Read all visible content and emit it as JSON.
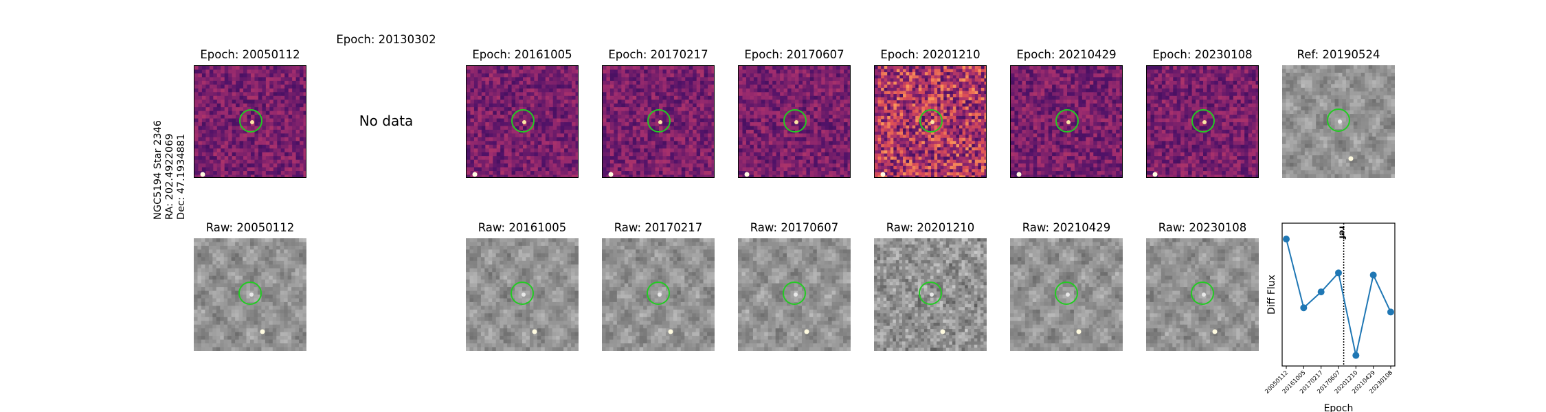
{
  "star_label": {
    "name": "NGC5194 Star 2346",
    "ra": "RA: 202.4922069",
    "dec": "Dec: 47.1934881"
  },
  "top_row": [
    {
      "title": "Epoch: 20050112",
      "has_data": true,
      "seed": 11
    },
    {
      "title": "Epoch: 20130302",
      "has_data": false,
      "note": "No data"
    },
    {
      "title": "Epoch: 20161005",
      "has_data": true,
      "seed": 23
    },
    {
      "title": "Epoch: 20170217",
      "has_data": true,
      "seed": 37
    },
    {
      "title": "Epoch: 20170607",
      "has_data": true,
      "seed": 41
    },
    {
      "title": "Epoch: 20201210",
      "has_data": true,
      "seed": 53
    },
    {
      "title": "Epoch: 20210429",
      "has_data": true,
      "seed": 67
    },
    {
      "title": "Epoch: 20230108",
      "has_data": true,
      "seed": 71
    }
  ],
  "ref_panel": {
    "title": "Ref: 20190524"
  },
  "bottom_row": [
    {
      "title": "Raw: 20050112"
    },
    {
      "title": "Raw: 20161005"
    },
    {
      "title": "Raw: 20170217"
    },
    {
      "title": "Raw: 20170607"
    },
    {
      "title": "Raw: 20201210"
    },
    {
      "title": "Raw: 20210429"
    },
    {
      "title": "Raw: 20230108"
    }
  ],
  "colors": {
    "circle": "#22cc22",
    "line": "#1f77b4"
  },
  "chart_data": {
    "type": "line",
    "xlabel": "Epoch",
    "ylabel": "Diff Flux",
    "categories": [
      "20050112",
      "20161005",
      "20170217",
      "20170607",
      "20201210",
      "20210429",
      "20230108"
    ],
    "values": [
      0.95,
      0.3,
      0.45,
      0.63,
      -0.15,
      0.61,
      0.26
    ],
    "ylim": [
      -0.25,
      1.1
    ],
    "ref_line": {
      "label": "ref",
      "position_between": [
        "20170607",
        "20201210"
      ],
      "x_fraction": 3.3
    },
    "grid": false
  }
}
